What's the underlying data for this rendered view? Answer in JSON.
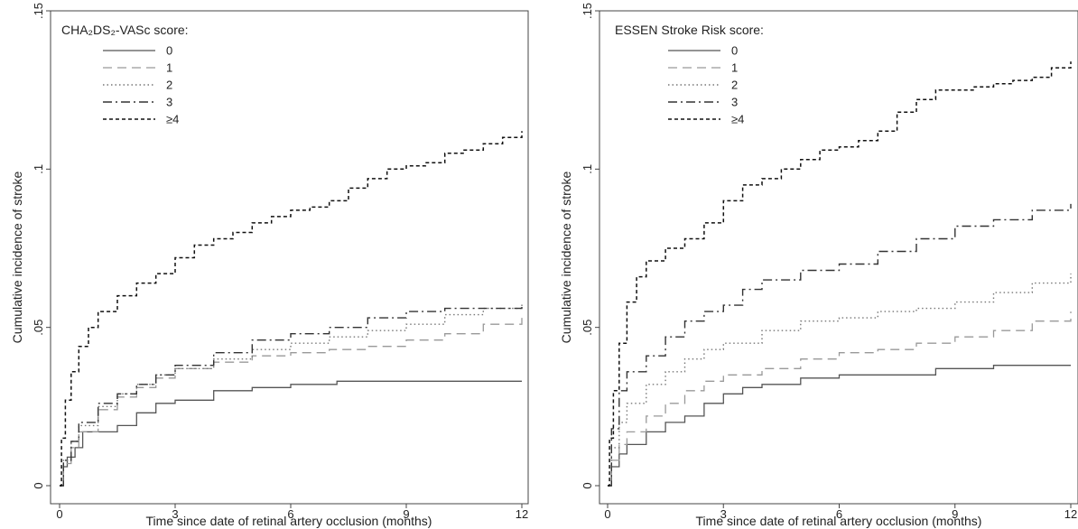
{
  "chart_data": [
    {
      "type": "line",
      "ylabel": "Cumulative incidence of stroke",
      "xlabel": "Time since date of retinal artery occlusion (months)",
      "legend_title": "CHA₂DS₂-VASc score:",
      "legend_position": "top-left",
      "xlim": [
        0,
        12
      ],
      "ylim": [
        0,
        0.15
      ],
      "x_ticks": [
        0,
        3,
        6,
        9,
        12
      ],
      "x_tick_labels": [
        "0",
        "3",
        "6",
        "9",
        "12"
      ],
      "y_ticks": [
        0,
        0.05,
        0.1,
        0.15
      ],
      "y_tick_labels": [
        "0",
        ".05",
        ".1",
        ".15"
      ],
      "grid": false,
      "series": [
        {
          "name": "0",
          "style": "solid",
          "color": "#555555",
          "x": [
            0,
            0.1,
            0.2,
            0.4,
            0.6,
            1.0,
            1.5,
            2.0,
            2.5,
            3.0,
            4.0,
            5.0,
            6.0,
            7.2,
            8.0,
            9.0,
            10.0,
            11.0,
            12.0
          ],
          "y": [
            0,
            0.006,
            0.009,
            0.012,
            0.017,
            0.017,
            0.019,
            0.023,
            0.026,
            0.027,
            0.03,
            0.031,
            0.032,
            0.033,
            0.033,
            0.033,
            0.033,
            0.033,
            0.033
          ]
        },
        {
          "name": "1",
          "style": "dashed",
          "color": "#999999",
          "x": [
            0,
            0.1,
            0.3,
            0.5,
            1.0,
            1.5,
            2.0,
            2.5,
            3.0,
            4.0,
            5.0,
            6.0,
            7.0,
            8.0,
            9.0,
            10.0,
            11.0,
            12.0
          ],
          "y": [
            0,
            0.007,
            0.012,
            0.017,
            0.024,
            0.028,
            0.031,
            0.034,
            0.037,
            0.039,
            0.041,
            0.042,
            0.043,
            0.044,
            0.046,
            0.048,
            0.051,
            0.053
          ]
        },
        {
          "name": "2",
          "style": "dotted",
          "color": "#777777",
          "x": [
            0,
            0.1,
            0.3,
            0.5,
            1.0,
            1.5,
            2.0,
            2.5,
            3.0,
            4.0,
            5.0,
            6.0,
            7.0,
            8.0,
            9.0,
            10.0,
            11.0,
            12.0
          ],
          "y": [
            0,
            0.008,
            0.014,
            0.019,
            0.025,
            0.029,
            0.032,
            0.035,
            0.037,
            0.04,
            0.043,
            0.045,
            0.047,
            0.049,
            0.051,
            0.054,
            0.056,
            0.058
          ]
        },
        {
          "name": "3",
          "style": "dashdot",
          "color": "#333333",
          "x": [
            0,
            0.1,
            0.3,
            0.5,
            1.0,
            1.5,
            2.0,
            2.5,
            3.0,
            4.0,
            5.0,
            6.0,
            7.0,
            8.0,
            9.0,
            10.0,
            11.0,
            12.0
          ],
          "y": [
            0,
            0.008,
            0.014,
            0.02,
            0.026,
            0.029,
            0.032,
            0.035,
            0.038,
            0.042,
            0.046,
            0.048,
            0.05,
            0.053,
            0.055,
            0.056,
            0.056,
            0.057
          ]
        },
        {
          "name": "≥4",
          "style": "shortdash",
          "color": "#111111",
          "x": [
            0,
            0.05,
            0.15,
            0.3,
            0.5,
            0.75,
            1.0,
            1.5,
            2.0,
            2.5,
            3.0,
            3.5,
            4.0,
            4.5,
            5.0,
            5.5,
            6.0,
            6.5,
            7.0,
            7.5,
            8.0,
            8.5,
            9.0,
            9.5,
            10.0,
            10.5,
            11.0,
            11.5,
            12.0
          ],
          "y": [
            0,
            0.015,
            0.027,
            0.036,
            0.044,
            0.05,
            0.055,
            0.06,
            0.064,
            0.067,
            0.072,
            0.076,
            0.078,
            0.08,
            0.083,
            0.085,
            0.087,
            0.088,
            0.09,
            0.094,
            0.097,
            0.1,
            0.101,
            0.102,
            0.105,
            0.106,
            0.108,
            0.11,
            0.112
          ]
        }
      ]
    },
    {
      "type": "line",
      "ylabel": "Cumulative incidence of stroke",
      "xlabel": "Time since date of retinal artery occlusion (months)",
      "legend_title": "ESSEN Stroke Risk score:",
      "legend_position": "top-left",
      "xlim": [
        0,
        12
      ],
      "ylim": [
        0,
        0.15
      ],
      "x_ticks": [
        0,
        3,
        6,
        9,
        12
      ],
      "x_tick_labels": [
        "0",
        "3",
        "6",
        "9",
        "12"
      ],
      "y_ticks": [
        0,
        0.05,
        0.1,
        0.15
      ],
      "y_tick_labels": [
        "0",
        ".05",
        ".1",
        ".15"
      ],
      "grid": false,
      "series": [
        {
          "name": "0",
          "style": "solid",
          "color": "#555555",
          "x": [
            0,
            0.1,
            0.3,
            0.5,
            1.0,
            1.5,
            2.0,
            2.5,
            3.0,
            3.5,
            4.0,
            5.0,
            6.0,
            7.0,
            8.0,
            8.5,
            9.0,
            10.0,
            11.0,
            12.0
          ],
          "y": [
            0,
            0.006,
            0.01,
            0.013,
            0.017,
            0.02,
            0.022,
            0.026,
            0.029,
            0.031,
            0.032,
            0.034,
            0.035,
            0.035,
            0.035,
            0.037,
            0.037,
            0.038,
            0.038,
            0.038
          ]
        },
        {
          "name": "1",
          "style": "dashed",
          "color": "#999999",
          "x": [
            0,
            0.1,
            0.3,
            0.5,
            1.0,
            1.5,
            2.0,
            2.5,
            3.0,
            4.0,
            5.0,
            6.0,
            7.0,
            8.0,
            9.0,
            10.0,
            11.0,
            12.0
          ],
          "y": [
            0,
            0.008,
            0.013,
            0.017,
            0.022,
            0.026,
            0.03,
            0.033,
            0.035,
            0.037,
            0.04,
            0.042,
            0.043,
            0.045,
            0.047,
            0.049,
            0.052,
            0.055
          ]
        },
        {
          "name": "2",
          "style": "dotted",
          "color": "#777777",
          "x": [
            0,
            0.1,
            0.3,
            0.5,
            1.0,
            1.5,
            2.0,
            2.5,
            3.0,
            4.0,
            5.0,
            6.0,
            7.0,
            8.0,
            9.0,
            10.0,
            11.0,
            12.0
          ],
          "y": [
            0,
            0.012,
            0.02,
            0.026,
            0.032,
            0.036,
            0.04,
            0.043,
            0.045,
            0.049,
            0.052,
            0.053,
            0.055,
            0.056,
            0.058,
            0.061,
            0.064,
            0.067
          ]
        },
        {
          "name": "3",
          "style": "dashdot",
          "color": "#333333",
          "x": [
            0,
            0.1,
            0.3,
            0.5,
            1.0,
            1.5,
            2.0,
            2.5,
            3.0,
            3.5,
            4.0,
            5.0,
            6.0,
            7.0,
            8.0,
            9.0,
            10.0,
            11.0,
            12.0
          ],
          "y": [
            0,
            0.018,
            0.03,
            0.036,
            0.041,
            0.047,
            0.052,
            0.055,
            0.057,
            0.062,
            0.065,
            0.068,
            0.07,
            0.074,
            0.078,
            0.082,
            0.084,
            0.087,
            0.089
          ]
        },
        {
          "name": "≥4",
          "style": "shortdash",
          "color": "#111111",
          "x": [
            0,
            0.05,
            0.15,
            0.3,
            0.5,
            0.75,
            1.0,
            1.5,
            2.0,
            2.5,
            3.0,
            3.5,
            4.0,
            4.5,
            5.0,
            5.5,
            6.0,
            6.5,
            7.0,
            7.5,
            8.0,
            8.5,
            9.0,
            9.5,
            10.0,
            10.5,
            11.0,
            11.5,
            12.0
          ],
          "y": [
            0,
            0.015,
            0.03,
            0.045,
            0.058,
            0.066,
            0.071,
            0.075,
            0.078,
            0.083,
            0.09,
            0.095,
            0.097,
            0.1,
            0.103,
            0.106,
            0.107,
            0.109,
            0.112,
            0.118,
            0.122,
            0.125,
            0.125,
            0.126,
            0.127,
            0.128,
            0.129,
            0.132,
            0.134
          ]
        }
      ]
    }
  ]
}
